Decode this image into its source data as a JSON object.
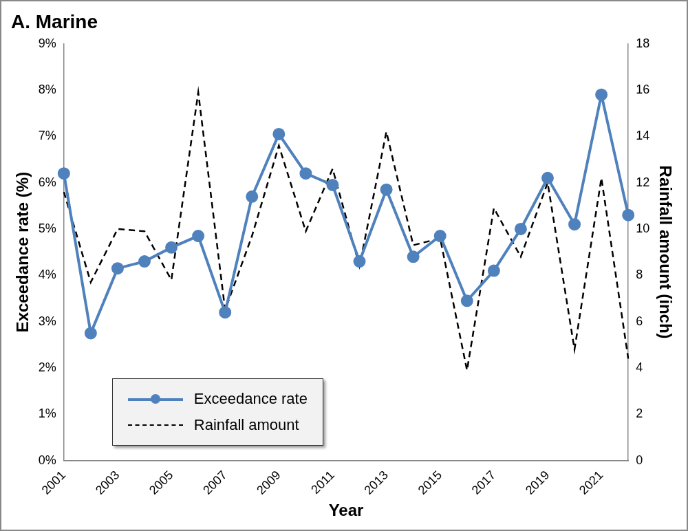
{
  "chart_data": {
    "type": "line",
    "title": "A. Marine",
    "x_label": "Year",
    "y_label": "Exceedance rate (%)",
    "y2_label": "Rainfall amount (inch)",
    "categories": [
      "2001",
      null,
      "2003",
      null,
      "2005",
      null,
      "2007",
      null,
      "2009",
      null,
      "2011",
      null,
      "2013",
      null,
      "2015",
      null,
      "2017",
      null,
      "2019",
      null,
      "2021",
      null
    ],
    "series": [
      {
        "name": "Exceedance rate",
        "color": "#4f81bd",
        "marker": "circle",
        "line_style": "solid",
        "axis": "y",
        "values": [
          6.2,
          2.75,
          4.15,
          4.3,
          4.6,
          4.85,
          3.2,
          5.7,
          7.05,
          6.2,
          5.95,
          4.3,
          5.85,
          4.4,
          4.85,
          3.45,
          4.1,
          5.0,
          6.1,
          5.1,
          7.9,
          5.3
        ]
      },
      {
        "name": "Rainfall amount",
        "color": "#000000",
        "marker": "none",
        "line_style": "dashed",
        "axis": "y2",
        "values": [
          11.6,
          7.7,
          10.0,
          9.9,
          7.8,
          15.9,
          6.5,
          9.7,
          13.6,
          9.9,
          12.6,
          8.4,
          14.2,
          9.3,
          9.6,
          3.9,
          10.9,
          8.8,
          12.0,
          4.8,
          12.2,
          4.4
        ]
      }
    ],
    "ylim": [
      0,
      9
    ],
    "yticks": [
      {
        "value": 0,
        "label": "0%"
      },
      {
        "value": 1,
        "label": "1%"
      },
      {
        "value": 2,
        "label": "2%"
      },
      {
        "value": 3,
        "label": "3%"
      },
      {
        "value": 4,
        "label": "4%"
      },
      {
        "value": 5,
        "label": "5%"
      },
      {
        "value": 6,
        "label": "6%"
      },
      {
        "value": 7,
        "label": "7%"
      },
      {
        "value": 8,
        "label": "8%"
      },
      {
        "value": 9,
        "label": "9%"
      }
    ],
    "y2lim": [
      0,
      18
    ],
    "y2ticks": [
      0,
      2,
      4,
      6,
      8,
      10,
      12,
      14,
      16,
      18
    ],
    "grid": false,
    "legend": "lower left"
  }
}
